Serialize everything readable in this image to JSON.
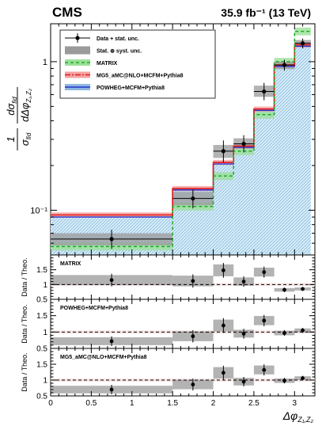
{
  "header": {
    "experiment": "CMS",
    "lumi": "35.9 fb⁻¹ (13 TeV)"
  },
  "chart_data": {
    "type": "histogram",
    "bin_edges": [
      0,
      1.5,
      2.0,
      2.25,
      2.5,
      2.75,
      3.0,
      3.2
    ],
    "bin_centers": [
      0.75,
      1.75,
      2.125,
      2.375,
      2.625,
      2.875,
      3.1
    ],
    "xlim": [
      0,
      3.25
    ],
    "xlabel": "Δφ",
    "xlabel_sub": "Z₁,Z₂",
    "x_ticks": [
      0,
      0.5,
      1,
      1.5,
      2,
      2.5,
      3
    ],
    "main": {
      "ylabel_frac": "1",
      "ylabel_frac_den": "σ",
      "ylabel_frac_den_sub": "fid",
      "ylabel_deriv_num": "dσ",
      "ylabel_deriv_num_sub": "fid",
      "ylabel_deriv_den": "dΔφ",
      "ylabel_deriv_den_sub": "Z₁,Z₂",
      "yscale": "log",
      "ylim": [
        0.05,
        1.8
      ],
      "y_tick_labels": [
        {
          "value": 0.1,
          "label": "10⁻¹"
        },
        {
          "value": 1,
          "label": "1"
        }
      ],
      "data": {
        "name": "Data + stat. unc.",
        "values": [
          0.064,
          0.12,
          0.25,
          0.28,
          0.63,
          0.95,
          1.33
        ],
        "stat_lo": [
          0.055,
          0.103,
          0.21,
          0.245,
          0.55,
          0.87,
          1.23
        ],
        "stat_hi": [
          0.074,
          0.138,
          0.295,
          0.32,
          0.72,
          1.03,
          1.43
        ],
        "syst_lo": [
          0.058,
          0.108,
          0.225,
          0.26,
          0.58,
          0.89,
          1.26
        ],
        "syst_hi": [
          0.07,
          0.133,
          0.275,
          0.305,
          0.69,
          1.0,
          1.4
        ]
      },
      "syst_label": "Stat. ⊕ syst. unc.",
      "series": [
        {
          "name": "MATRIX",
          "color": "#22aa22",
          "values": [
            0.057,
            0.106,
            0.17,
            0.25,
            0.44,
            1.0,
            1.6
          ],
          "band_color": "#9be09b"
        },
        {
          "name": "MG5_aMC@NLO+MCFM+Pythia8",
          "color": "#e41a1c",
          "values": [
            0.093,
            0.14,
            0.21,
            0.27,
            0.48,
            0.95,
            1.3
          ],
          "band_color": "#f4a3a3"
        },
        {
          "name": "POWHEG+MCFM+Pythia8",
          "color": "#2233cc",
          "values": [
            0.09,
            0.137,
            0.205,
            0.265,
            0.47,
            0.93,
            1.27
          ],
          "band_color": "#8fb8e0"
        }
      ]
    },
    "ratio_panels": [
      {
        "label": "MATRIX",
        "ylabel": "Data / Theo.",
        "ylim": [
          0.5,
          2.0
        ],
        "y_ticks": [
          0.5,
          1,
          1.5
        ],
        "values": [
          1.15,
          1.12,
          1.48,
          1.1,
          1.42,
          0.82,
          0.85
        ],
        "err_lo": [
          0.17,
          0.18,
          0.2,
          0.14,
          0.15,
          0.06,
          0.05
        ],
        "err_hi": [
          0.17,
          0.18,
          0.2,
          0.14,
          0.15,
          0.06,
          0.05
        ]
      },
      {
        "label": "POWHEG+MCFM+Pythia8",
        "ylabel": "Data / Theo.",
        "ylim": [
          0.5,
          2.0
        ],
        "y_ticks": [
          0.5,
          1,
          1.5
        ],
        "values": [
          0.72,
          0.87,
          1.2,
          0.95,
          1.35,
          0.97,
          1.05
        ],
        "err_lo": [
          0.12,
          0.15,
          0.18,
          0.12,
          0.14,
          0.07,
          0.06
        ],
        "err_hi": [
          0.12,
          0.15,
          0.18,
          0.12,
          0.14,
          0.07,
          0.06
        ]
      },
      {
        "label": "MG5_aMC@NLO+MCFM+Pythia8",
        "ylabel": "Data / Theo.",
        "ylim": [
          0.5,
          2.0
        ],
        "y_ticks": [
          0.5,
          1,
          1.5
        ],
        "values": [
          0.7,
          0.86,
          1.23,
          0.95,
          1.32,
          0.98,
          1.06
        ],
        "err_lo": [
          0.12,
          0.15,
          0.18,
          0.12,
          0.14,
          0.07,
          0.06
        ],
        "err_hi": [
          0.12,
          0.15,
          0.18,
          0.12,
          0.14,
          0.07,
          0.06
        ]
      }
    ]
  }
}
